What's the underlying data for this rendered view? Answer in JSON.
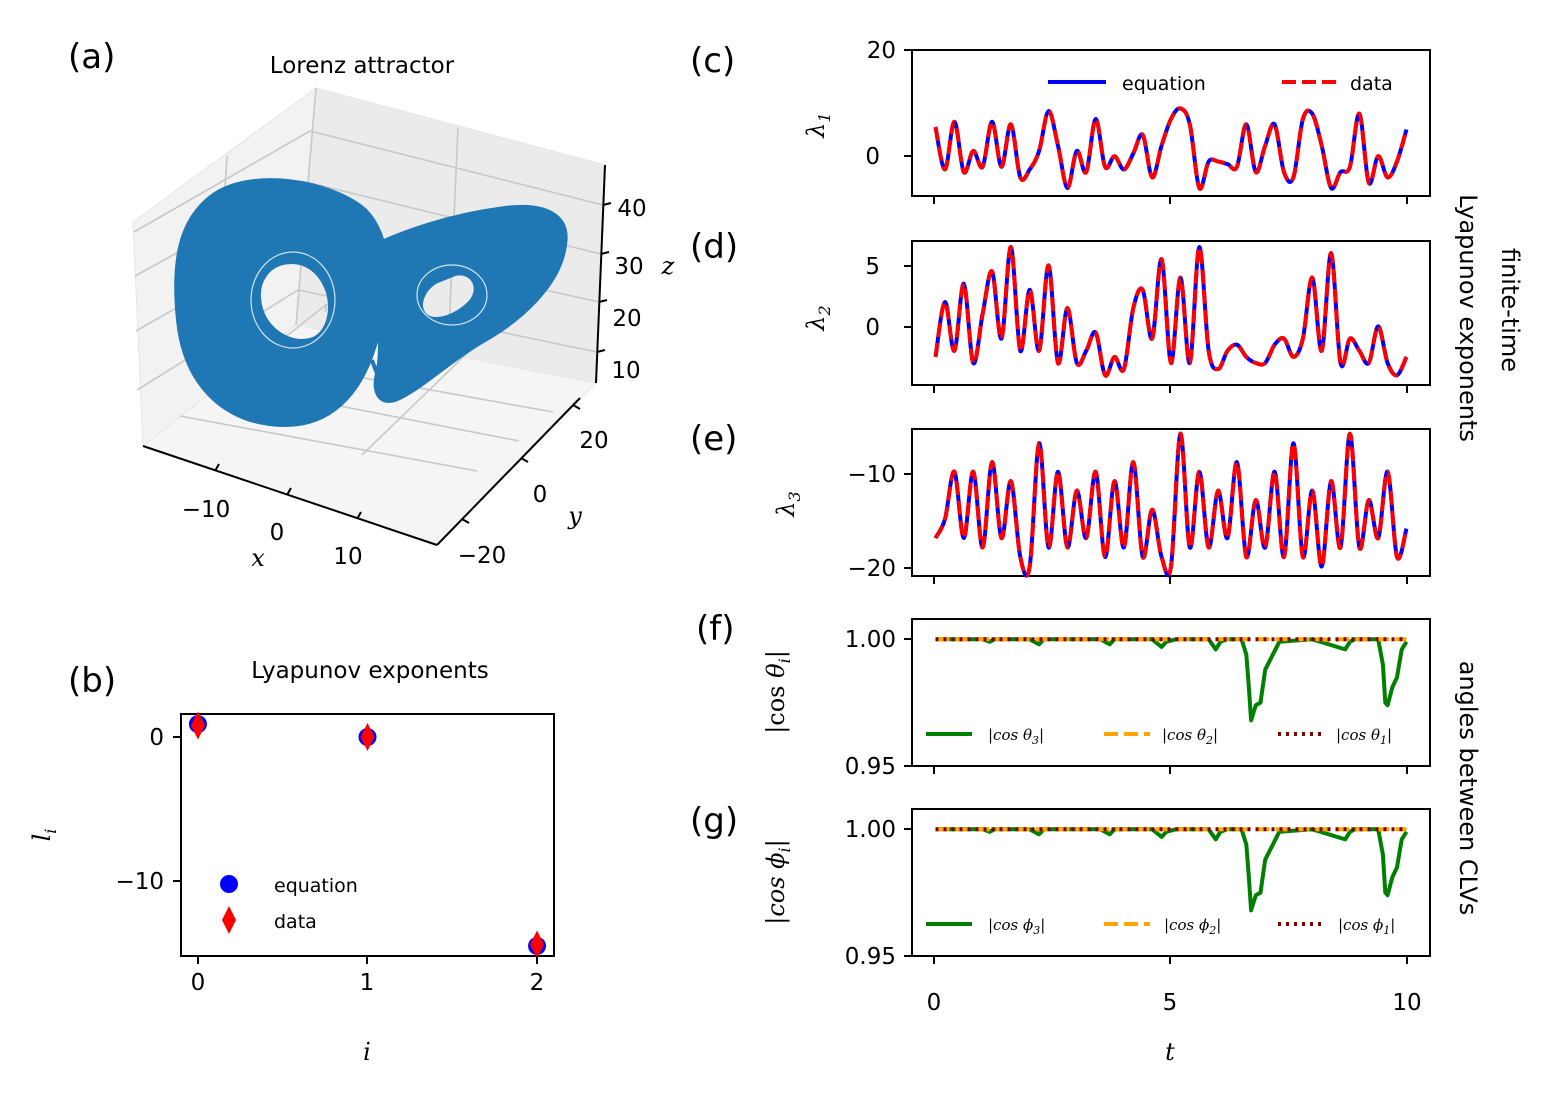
{
  "chart_data": [
    {
      "panel": "(a)",
      "type": "scatter",
      "title": "Lorenz attractor",
      "xlabel": "x",
      "ylabel": "y",
      "zlabel": "z",
      "xticks": [
        "−10",
        "0",
        "10"
      ],
      "yticks": [
        "−20",
        "0",
        "20"
      ],
      "zticks": [
        "10",
        "20",
        "30",
        "40"
      ],
      "color": "#1f77b4"
    },
    {
      "panel": "(b)",
      "type": "scatter",
      "title": "Lyapunov exponents",
      "xlabel": "i",
      "ylabel": "l_i",
      "xticks": [
        "0",
        "1",
        "2"
      ],
      "yticks": [
        "0",
        "−10"
      ],
      "xlim": [
        -0.1,
        2.1
      ],
      "ylim": [
        -15.2,
        1.6
      ],
      "series": [
        {
          "name": "equation",
          "x": [
            0,
            1,
            2
          ],
          "values": [
            0.9,
            0.0,
            -14.5
          ],
          "color": "#0000ff",
          "marker": "circle"
        },
        {
          "name": "data",
          "x": [
            0,
            1,
            2
          ],
          "values": [
            0.8,
            0.0,
            -14.4
          ],
          "color": "#ff0000",
          "marker": "thin-diamond"
        }
      ]
    },
    {
      "panel": "(c)",
      "type": "line",
      "ylabel": "λ1",
      "yticks": [
        "20",
        "0"
      ],
      "xlim": [
        -0.5,
        10.5
      ],
      "ylim": [
        -7.5,
        20
      ],
      "series": [
        {
          "name": "equation",
          "color": "#0000ff",
          "dash": "solid",
          "t": [
            0.0,
            0.2,
            0.4,
            0.6,
            0.8,
            1.0,
            1.2,
            1.4,
            1.6,
            1.8,
            2.0,
            2.2,
            2.4,
            2.6,
            2.8,
            3.0,
            3.2,
            3.4,
            3.6,
            3.8,
            4.0,
            4.2,
            4.4,
            4.6,
            4.8,
            5.0,
            5.2,
            5.4,
            5.6,
            5.8,
            6.0,
            6.2,
            6.4,
            6.6,
            6.8,
            7.0,
            7.2,
            7.4,
            7.6,
            7.8,
            8.0,
            8.2,
            8.4,
            8.6,
            8.8,
            9.0,
            9.2,
            9.4,
            9.6,
            9.8,
            10.0
          ],
          "values": [
            5.5,
            -2.5,
            6.5,
            -3,
            1,
            -2,
            6.5,
            -2,
            6,
            -4,
            -2.5,
            1,
            8.5,
            2,
            -6,
            1,
            -3,
            7,
            -2,
            0,
            -2.5,
            0.5,
            4,
            -4,
            2,
            7,
            9,
            6,
            -6,
            -1,
            -1,
            -1.5,
            -2,
            6,
            -3,
            2,
            6,
            -3,
            -4,
            7,
            8,
            2,
            -6,
            -3,
            -2,
            8,
            -5,
            0,
            -4,
            -1,
            5
          ]
        }
      ]
    },
    {
      "panel": "(d)",
      "type": "line",
      "ylabel": "λ2",
      "yticks": [
        "5",
        "0"
      ],
      "xlim": [
        -0.5,
        10.5
      ],
      "ylim": [
        -4.8,
        7.0
      ],
      "series": [
        {
          "name": "equation",
          "color": "#0000ff",
          "dash": "solid",
          "t": [
            0.0,
            0.2,
            0.4,
            0.6,
            0.8,
            1.0,
            1.2,
            1.4,
            1.6,
            1.8,
            2.0,
            2.2,
            2.4,
            2.6,
            2.8,
            3.0,
            3.2,
            3.4,
            3.6,
            3.8,
            4.0,
            4.2,
            4.4,
            4.6,
            4.8,
            5.0,
            5.2,
            5.4,
            5.6,
            5.8,
            6.0,
            6.2,
            6.4,
            6.6,
            6.8,
            7.0,
            7.2,
            7.4,
            7.6,
            7.8,
            8.0,
            8.2,
            8.4,
            8.6,
            8.8,
            9.0,
            9.2,
            9.4,
            9.6,
            9.8,
            10.0
          ],
          "values": [
            -2.5,
            2,
            -2,
            3.5,
            -3,
            1,
            4.5,
            -1,
            6.5,
            -2,
            3,
            -2,
            5,
            -3,
            1.5,
            -3,
            -2,
            -0.5,
            -4,
            -2.5,
            -3.5,
            1.5,
            3,
            -1,
            5.5,
            -3,
            4,
            -3,
            6.5,
            -2,
            -3.5,
            -2,
            -1.5,
            -2.5,
            -3,
            -3,
            -1.5,
            -1,
            -2.5,
            -1,
            4,
            -2,
            6,
            -3,
            -1,
            -2,
            -3,
            0,
            -3,
            -4,
            -2.5
          ]
        }
      ]
    },
    {
      "panel": "(e)",
      "type": "line",
      "ylabel": "λ3",
      "yticks": [
        "−10",
        "−20"
      ],
      "xlim": [
        -0.5,
        10.5
      ],
      "ylim": [
        -21.0,
        -5.5
      ],
      "series": [
        {
          "name": "equation",
          "color": "#0000ff",
          "dash": "solid",
          "t": [
            0.0,
            0.2,
            0.4,
            0.6,
            0.8,
            1.0,
            1.2,
            1.4,
            1.6,
            1.8,
            2.0,
            2.2,
            2.4,
            2.6,
            2.8,
            3.0,
            3.2,
            3.4,
            3.6,
            3.8,
            4.0,
            4.2,
            4.4,
            4.6,
            4.8,
            5.0,
            5.2,
            5.4,
            5.6,
            5.8,
            6.0,
            6.2,
            6.4,
            6.6,
            6.8,
            7.0,
            7.2,
            7.4,
            7.6,
            7.8,
            8.0,
            8.2,
            8.4,
            8.6,
            8.8,
            9.0,
            9.2,
            9.4,
            9.6,
            9.8,
            10.0
          ],
          "values": [
            -17,
            -15,
            -10,
            -17,
            -10,
            -18,
            -9,
            -17,
            -11,
            -19,
            -20,
            -7,
            -18,
            -10,
            -18,
            -12,
            -17,
            -10,
            -19,
            -11,
            -18,
            -9,
            -19,
            -14,
            -19,
            -20,
            -6,
            -18,
            -10,
            -18,
            -12,
            -17,
            -9,
            -19,
            -13,
            -18,
            -10,
            -19,
            -7,
            -19,
            -12,
            -20,
            -11,
            -18,
            -6,
            -18,
            -13,
            -17,
            -10,
            -19,
            -16
          ]
        }
      ]
    },
    {
      "panel": "(f)",
      "type": "line",
      "ylabel": "|cosθi|",
      "yticks": [
        "1.00",
        "0.95"
      ],
      "xlim": [
        -0.5,
        10.5
      ],
      "ylim": [
        0.95,
        1.008
      ],
      "series": [
        {
          "name": "|cosθ3|",
          "color": "#008000",
          "dash": "solid",
          "t": [
            0.0,
            1.0,
            1.15,
            1.25,
            1.4,
            2.0,
            2.2,
            2.3,
            2.5,
            3.5,
            3.7,
            3.8,
            4.0,
            4.6,
            4.8,
            4.9,
            5.1,
            5.8,
            5.95,
            6.05,
            6.2,
            6.5,
            6.6,
            6.65,
            6.7,
            6.8,
            6.9,
            7.0,
            7.3,
            8.0,
            8.7,
            8.8,
            8.9,
            9.4,
            9.5,
            9.55,
            9.6,
            9.7,
            9.8,
            9.9,
            10.0
          ],
          "values": [
            1.0,
            1.0,
            0.999,
            1.0,
            1.0,
            1.0,
            0.998,
            1.0,
            1.0,
            1.0,
            0.998,
            1.0,
            1.0,
            1.0,
            0.997,
            0.999,
            1.0,
            1.0,
            0.996,
            0.999,
            1.0,
            1.0,
            0.994,
            0.982,
            0.968,
            0.974,
            0.975,
            0.988,
            0.999,
            1.0,
            0.996,
            0.999,
            1.0,
            1.0,
            0.99,
            0.975,
            0.974,
            0.981,
            0.985,
            0.996,
            0.999
          ]
        },
        {
          "name": "|cosθ2|",
          "color": "#ffa500",
          "dash": "dashed",
          "t": [
            0.0,
            8.2,
            8.4,
            8.6,
            10.0
          ],
          "values": [
            1.0,
            1.0,
            0.9995,
            1.0,
            1.0
          ]
        },
        {
          "name": "|cosθ1|",
          "color": "#800000",
          "dash": "dotted",
          "t": [
            0.0,
            10.0
          ],
          "values": [
            1.0,
            1.0
          ]
        }
      ]
    },
    {
      "panel": "(g)",
      "type": "line",
      "xlabel": "t",
      "ylabel": "|cosϕi|",
      "xticks": [
        "0",
        "5",
        "10"
      ],
      "yticks": [
        "1.00",
        "0.95"
      ],
      "xlim": [
        -0.5,
        10.5
      ],
      "ylim": [
        0.95,
        1.008
      ],
      "series": [
        {
          "name": "|cosϕ3|",
          "color": "#008000",
          "dash": "solid",
          "t": [
            0.0,
            1.0,
            1.15,
            1.25,
            1.4,
            2.0,
            2.2,
            2.3,
            2.5,
            3.5,
            3.7,
            3.8,
            4.0,
            4.6,
            4.8,
            4.9,
            5.1,
            5.8,
            5.95,
            6.05,
            6.2,
            6.5,
            6.6,
            6.65,
            6.7,
            6.8,
            6.9,
            7.0,
            7.3,
            8.0,
            8.7,
            8.8,
            8.9,
            9.4,
            9.5,
            9.55,
            9.6,
            9.7,
            9.8,
            9.9,
            10.0
          ],
          "values": [
            1.0,
            1.0,
            0.999,
            1.0,
            1.0,
            1.0,
            0.998,
            1.0,
            1.0,
            1.0,
            0.998,
            1.0,
            1.0,
            1.0,
            0.997,
            0.999,
            1.0,
            1.0,
            0.996,
            0.999,
            1.0,
            1.0,
            0.994,
            0.982,
            0.968,
            0.974,
            0.975,
            0.988,
            0.999,
            1.0,
            0.996,
            0.999,
            1.0,
            1.0,
            0.99,
            0.975,
            0.974,
            0.981,
            0.985,
            0.996,
            0.999
          ]
        },
        {
          "name": "|cosϕ2|",
          "color": "#ffa500",
          "dash": "dashed",
          "t": [
            0.0,
            10.0
          ],
          "values": [
            1.0,
            1.0
          ]
        },
        {
          "name": "|cosϕ1|",
          "color": "#800000",
          "dash": "dotted",
          "t": [
            0.0,
            10.0
          ],
          "values": [
            1.0,
            1.0
          ]
        }
      ]
    }
  ],
  "panel_labels": [
    "(a)",
    "(b)",
    "(c)",
    "(d)",
    "(e)",
    "(f)",
    "(g)"
  ],
  "side_labels": {
    "ftle_line1": "finite-time",
    "ftle_line2": "Lyapunov exponents",
    "angles": "angles between CLVs"
  },
  "legend_c": {
    "equation": "equation",
    "data": "data"
  }
}
